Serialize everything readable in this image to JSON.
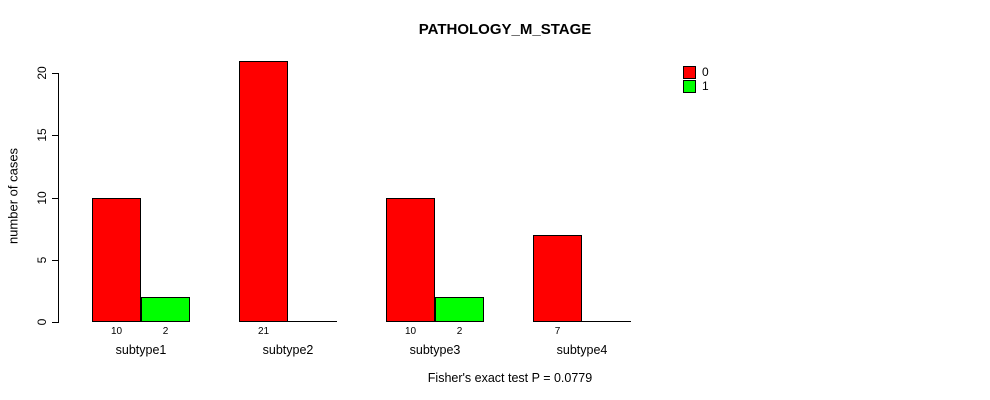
{
  "chart_data": {
    "type": "bar",
    "title": "PATHOLOGY_M_STAGE",
    "ylabel": "number of cases",
    "xlabel": "",
    "categories": [
      "subtype1",
      "subtype2",
      "subtype3",
      "subtype4"
    ],
    "series": [
      {
        "name": "0",
        "color": "#FF0000",
        "values": [
          10,
          21,
          10,
          7
        ]
      },
      {
        "name": "1",
        "color": "#00FF00",
        "values": [
          2,
          0,
          2,
          0
        ]
      }
    ],
    "bar_value_labels": [
      [
        "10",
        "2"
      ],
      [
        "21",
        ""
      ],
      [
        "10",
        "2"
      ],
      [
        "7",
        ""
      ]
    ],
    "yticks": [
      "0",
      "5",
      "10",
      "15",
      "20"
    ],
    "ylim": [
      0,
      20
    ],
    "grid": false,
    "legend_position": "right",
    "legend_entries": [
      {
        "label": "0",
        "color": "#FF0000"
      },
      {
        "label": "1",
        "color": "#00FF00"
      }
    ],
    "annotation": "Fisher's exact test P = 0.0779",
    "background_color": "#FFFFFF",
    "axis_color": "#000000"
  }
}
